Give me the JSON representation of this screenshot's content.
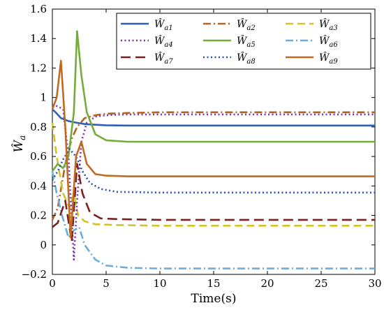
{
  "chart_data": {
    "type": "line",
    "title": "",
    "xlabel": "Time(s)",
    "ylabel": "Ŵ_a",
    "ylabel_main": "Ŵ",
    "ylabel_sub": "a",
    "xlim": [
      0,
      30
    ],
    "ylim": [
      -0.2,
      1.6
    ],
    "xticks": [
      0,
      5,
      10,
      15,
      20,
      25,
      30
    ],
    "yticks": [
      -0.2,
      0,
      0.2,
      0.4,
      0.6,
      0.8,
      1,
      1.2,
      1.4,
      1.6
    ],
    "ytick_labels": [
      "−0.2",
      "0",
      "0.2",
      "0.4",
      "0.6",
      "0.8",
      "1",
      "1.2",
      "1.4",
      "1.6"
    ],
    "grid": false,
    "legend_position": "top-right",
    "legend_columns": 3,
    "series": [
      {
        "name": "Ŵa1",
        "sub": "a1",
        "color": "#2e5fb5",
        "dash": "solid",
        "x": [
          0,
          0.3,
          0.8,
          1.5,
          2.2,
          3,
          4,
          5,
          7,
          10,
          30
        ],
        "y": [
          0.92,
          0.9,
          0.86,
          0.84,
          0.83,
          0.82,
          0.815,
          0.812,
          0.81,
          0.81,
          0.81
        ]
      },
      {
        "name": "Ŵa2",
        "sub": "a2",
        "color": "#b5641e",
        "dash": "dashdot",
        "x": [
          0,
          0.5,
          1.2,
          1.8,
          2.3,
          3,
          4,
          5,
          7,
          10,
          30
        ],
        "y": [
          0.17,
          0.25,
          0.55,
          0.72,
          0.8,
          0.86,
          0.88,
          0.89,
          0.895,
          0.9,
          0.9
        ]
      },
      {
        "name": "Ŵa3",
        "sub": "a3",
        "color": "#d4c22c",
        "dash": "dashed",
        "x": [
          0,
          0.4,
          1.0,
          1.6,
          2.0,
          2.4,
          3,
          4,
          6,
          10,
          30
        ],
        "y": [
          0.83,
          0.6,
          0.35,
          0.25,
          0.35,
          0.2,
          0.16,
          0.14,
          0.135,
          0.13,
          0.13
        ]
      },
      {
        "name": "Ŵa4",
        "sub": "a4",
        "color": "#7b33a8",
        "dash": "dotted",
        "x": [
          0,
          0.5,
          1.0,
          1.5,
          2.0,
          2.3,
          2.7,
          3.2,
          4,
          5,
          7,
          10,
          30
        ],
        "y": [
          0.95,
          0.94,
          0.92,
          0.6,
          -0.1,
          0.3,
          0.7,
          0.83,
          0.87,
          0.88,
          0.885,
          0.885,
          0.885
        ]
      },
      {
        "name": "Ŵa5",
        "sub": "a5",
        "color": "#72ad3a",
        "dash": "solid",
        "x": [
          0,
          0.5,
          1.0,
          1.5,
          2.0,
          2.3,
          2.7,
          3.2,
          4,
          5,
          7,
          10,
          30
        ],
        "y": [
          0.5,
          0.55,
          0.52,
          0.6,
          0.9,
          1.45,
          1.15,
          0.9,
          0.75,
          0.71,
          0.7,
          0.7,
          0.7
        ]
      },
      {
        "name": "Ŵa6",
        "sub": "a6",
        "color": "#6aaee0",
        "dash": "dashdot",
        "x": [
          0,
          0.4,
          0.9,
          1.5,
          2.0,
          2.5,
          3,
          4,
          5,
          7,
          10,
          30
        ],
        "y": [
          0.5,
          0.35,
          0.2,
          0.05,
          0.1,
          0.12,
          0.0,
          -0.1,
          -0.14,
          -0.155,
          -0.16,
          -0.16
        ]
      },
      {
        "name": "Ŵa7",
        "sub": "a7",
        "color": "#7a2020",
        "dash": "longdash",
        "x": [
          0,
          0.5,
          1.2,
          1.8,
          2.3,
          2.8,
          3.5,
          4.5,
          6,
          10,
          30
        ],
        "y": [
          0.12,
          0.15,
          0.3,
          0.02,
          0.55,
          0.35,
          0.22,
          0.18,
          0.175,
          0.17,
          0.17
        ]
      },
      {
        "name": "Ŵa8",
        "sub": "a8",
        "color": "#2c50b0",
        "dash": "dotted",
        "x": [
          0,
          0.5,
          1.0,
          1.6,
          2.2,
          2.8,
          3.5,
          4.5,
          6,
          10,
          30
        ],
        "y": [
          0.44,
          0.5,
          0.58,
          0.65,
          0.6,
          0.5,
          0.42,
          0.38,
          0.36,
          0.355,
          0.355
        ]
      },
      {
        "name": "Ŵa9",
        "sub": "a9",
        "color": "#c06a22",
        "dash": "solid",
        "x": [
          0,
          0.4,
          0.8,
          1.2,
          1.7,
          2.2,
          2.7,
          3.2,
          4,
          5,
          7,
          10,
          30
        ],
        "y": [
          0.92,
          1.0,
          1.25,
          0.8,
          0.05,
          0.6,
          0.7,
          0.55,
          0.48,
          0.47,
          0.465,
          0.465,
          0.465
        ]
      }
    ]
  }
}
